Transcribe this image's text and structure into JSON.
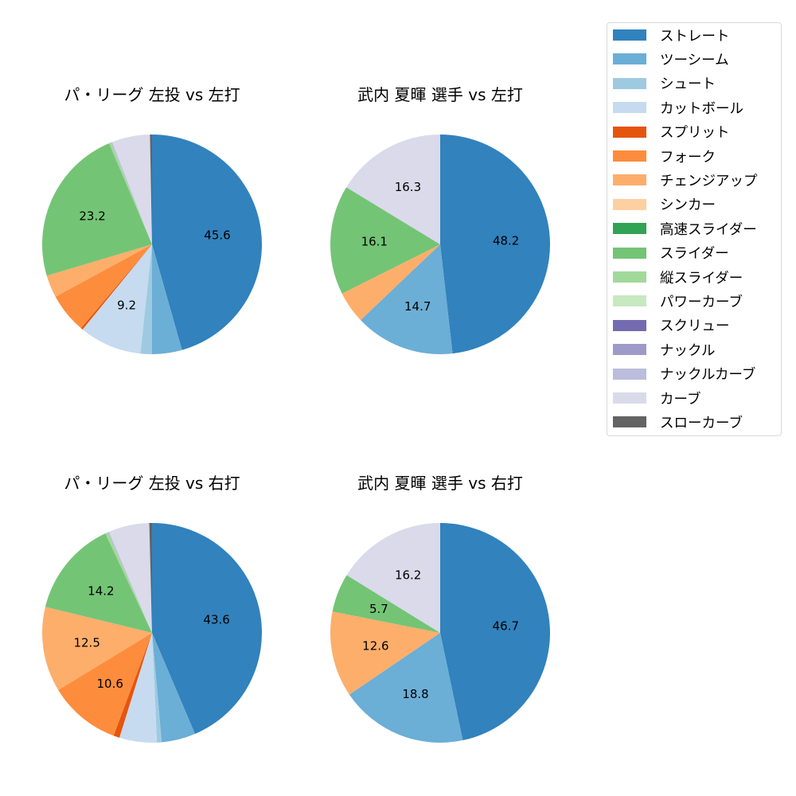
{
  "legend": {
    "items": [
      {
        "label": "ストレート",
        "color": "#3182bd"
      },
      {
        "label": "ツーシーム",
        "color": "#6baed6"
      },
      {
        "label": "シュート",
        "color": "#9ecae1"
      },
      {
        "label": "カットボール",
        "color": "#c6dbef"
      },
      {
        "label": "スプリット",
        "color": "#e6550d"
      },
      {
        "label": "フォーク",
        "color": "#fd8d3c"
      },
      {
        "label": "チェンジアップ",
        "color": "#fdae6b"
      },
      {
        "label": "シンカー",
        "color": "#fdd0a2"
      },
      {
        "label": "高速スライダー",
        "color": "#31a354"
      },
      {
        "label": "スライダー",
        "color": "#74c476"
      },
      {
        "label": "縦スライダー",
        "color": "#a1d99b"
      },
      {
        "label": "パワーカーブ",
        "color": "#c7e9c0"
      },
      {
        "label": "スクリュー",
        "color": "#756bb1"
      },
      {
        "label": "ナックル",
        "color": "#9e9ac8"
      },
      {
        "label": "ナックルカーブ",
        "color": "#bcbddc"
      },
      {
        "label": "カーブ",
        "color": "#dadaeb"
      },
      {
        "label": "スローカーブ",
        "color": "#636363"
      }
    ]
  },
  "chart_data": [
    {
      "type": "pie",
      "title": "パ・リーグ 左投 vs 左打",
      "labels": [
        "ストレート",
        "ツーシーム",
        "シュート",
        "カットボール",
        "スプリット",
        "フォーク",
        "チェンジアップ",
        "スライダー",
        "縦スライダー",
        "ナックルカーブ",
        "カーブ",
        "スローカーブ"
      ],
      "values": [
        45.6,
        4.4,
        1.7,
        9.2,
        0.3,
        5.9,
        3.3,
        23.2,
        0.3,
        0.2,
        5.6,
        0.3
      ],
      "shown_labels": [
        "45.6",
        "",
        "",
        "9.2",
        "",
        "",
        "",
        "23.2",
        "",
        "",
        "",
        ""
      ],
      "start_angle": 90,
      "direction": "clockwise"
    },
    {
      "type": "pie",
      "title": "武内 夏暉 選手 vs 左打",
      "labels": [
        "ストレート",
        "ツーシーム",
        "チェンジアップ",
        "スライダー",
        "カーブ"
      ],
      "values": [
        48.2,
        14.7,
        4.7,
        16.1,
        16.3
      ],
      "shown_labels": [
        "48.2",
        "14.7",
        "",
        "16.1",
        "16.3"
      ],
      "start_angle": 90,
      "direction": "clockwise"
    },
    {
      "type": "pie",
      "title": "パ・リーグ 左投 vs 右打",
      "labels": [
        "ストレート",
        "ツーシーム",
        "シュート",
        "カットボール",
        "スプリット",
        "フォーク",
        "チェンジアップ",
        "スライダー",
        "縦スライダー",
        "ナックルカーブ",
        "カーブ",
        "スローカーブ"
      ],
      "values": [
        43.6,
        5.0,
        0.7,
        5.5,
        0.9,
        10.6,
        12.5,
        14.2,
        0.4,
        0.2,
        6.0,
        0.4
      ],
      "shown_labels": [
        "43.6",
        "",
        "",
        "",
        "",
        "10.6",
        "12.5",
        "14.2",
        "",
        "",
        "",
        ""
      ],
      "start_angle": 90,
      "direction": "clockwise"
    },
    {
      "type": "pie",
      "title": "武内 夏暉 選手 vs 右打",
      "labels": [
        "ストレート",
        "ツーシーム",
        "チェンジアップ",
        "スライダー",
        "カーブ"
      ],
      "values": [
        46.7,
        18.8,
        12.6,
        5.7,
        16.2
      ],
      "shown_labels": [
        "46.7",
        "18.8",
        "12.6",
        "5.7",
        "16.2"
      ],
      "start_angle": 90,
      "direction": "clockwise"
    }
  ]
}
